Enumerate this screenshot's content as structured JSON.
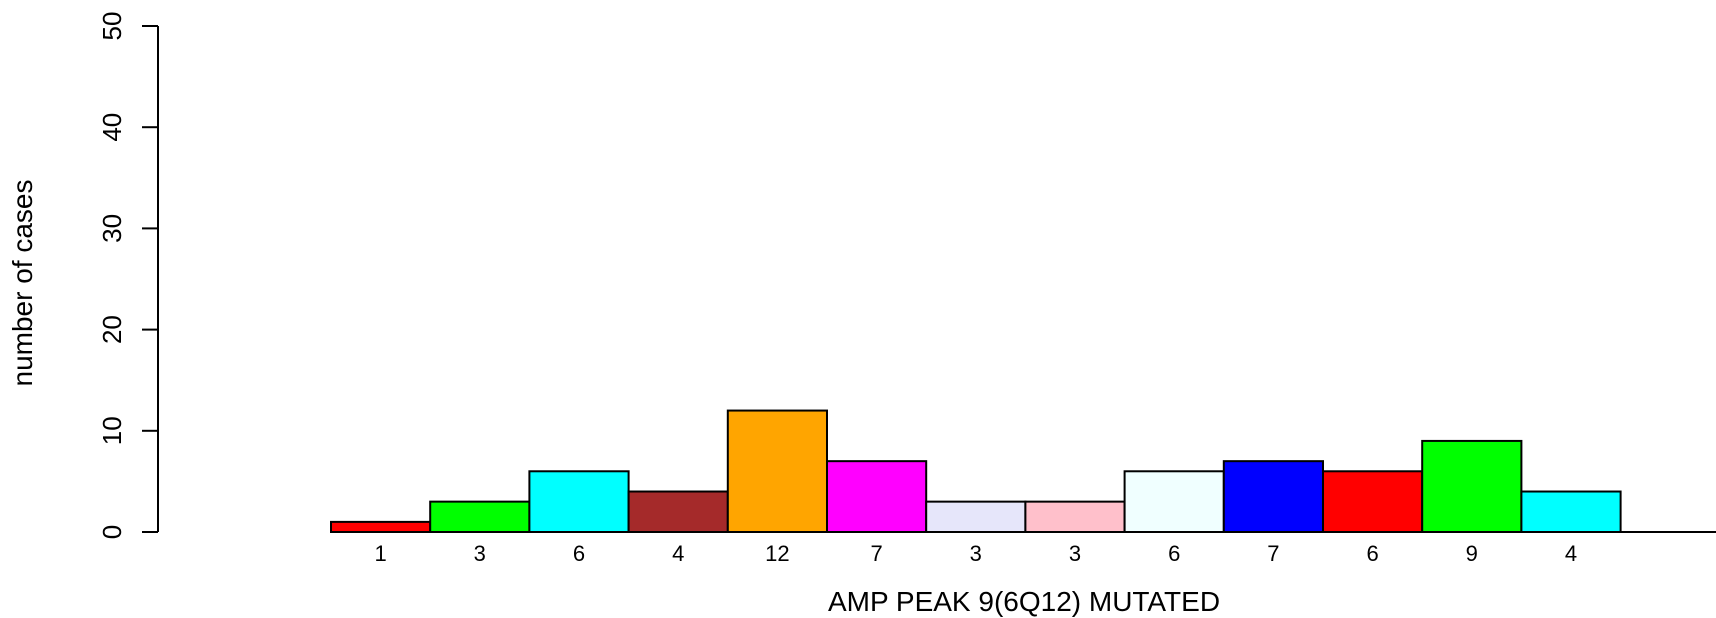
{
  "chart_data": {
    "type": "bar",
    "title": "",
    "xlabel": "AMP PEAK  9(6Q12) MUTATED",
    "ylabel": "number of cases",
    "ylim": [
      0,
      50
    ],
    "yticks": [
      0,
      10,
      20,
      30,
      40,
      50
    ],
    "ytick_labels": [
      "0",
      "10",
      "20",
      "30",
      "40",
      "50"
    ],
    "grid": false,
    "legend": "none",
    "categories": [
      "1",
      "3",
      "6",
      "4",
      "12",
      "7",
      "3",
      "3",
      "6",
      "7",
      "6",
      "9",
      "4"
    ],
    "values": [
      1,
      3,
      6,
      4,
      12,
      7,
      3,
      3,
      6,
      7,
      6,
      9,
      4
    ],
    "colors": [
      "#ff0000",
      "#00ff00",
      "#00ffff",
      "#a52a2a",
      "#ffa500",
      "#ff00ff",
      "#e6e6fa",
      "#ffc0cb",
      "#f0ffff",
      "#0000ff",
      "#ff0000",
      "#00ff00",
      "#00ffff"
    ]
  }
}
